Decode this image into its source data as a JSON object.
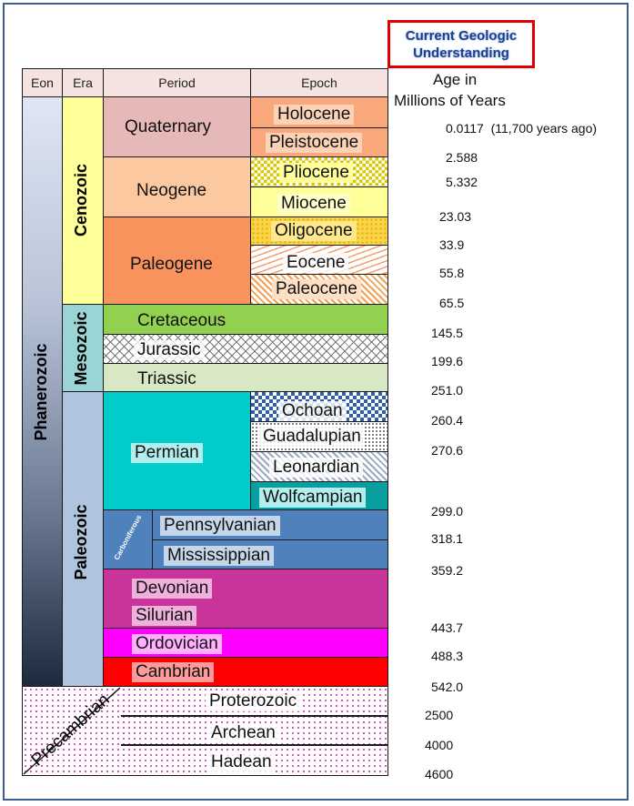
{
  "title": {
    "line1": "Current Geologic",
    "line2": "Understanding"
  },
  "age_header": {
    "line1": "Age in",
    "line2": "Millions of Years"
  },
  "columns": {
    "eon": "Eon",
    "era": "Era",
    "period": "Period",
    "epoch": "Epoch"
  },
  "eons": {
    "phanerozoic": "Phanerozoic",
    "precambrian": "Precambrian"
  },
  "eras": {
    "cenozoic": "Cenozoic",
    "mesozoic": "Mesozoic",
    "paleozoic": "Paleozoic"
  },
  "periods": {
    "quaternary": "Quaternary",
    "neogene": "Neogene",
    "paleogene": "Paleogene",
    "cretaceous": "Cretaceous",
    "jurassic": "Jurassic",
    "triassic": "Triassic",
    "permian": "Permian",
    "carboniferous": "Carboniferous",
    "pennsylvanian": "Pennsylvanian",
    "mississippian": "Mississippian",
    "devonian": "Devonian",
    "silurian": "Silurian",
    "ordovician": "Ordovician",
    "cambrian": "Cambrian",
    "proterozoic": "Proterozoic",
    "archean": "Archean",
    "hadean": "Hadean"
  },
  "epochs": {
    "holocene": "Holocene",
    "pleistocene": "Pleistocene",
    "pliocene": "Pliocene",
    "miocene": "Miocene",
    "oligocene": "Oligocene",
    "eocene": "Eocene",
    "paleocene": "Paleocene",
    "ochoan": "Ochoan",
    "guadalupian": "Guadalupian",
    "leonardian": "Leonardian",
    "wolfcampian": "Wolfcampian"
  },
  "ages": [
    {
      "value": "0.0117",
      "note": "(11,700 years ago)"
    },
    {
      "value": "2.588"
    },
    {
      "value": "5.332"
    },
    {
      "value": "23.03"
    },
    {
      "value": "33.9"
    },
    {
      "value": "55.8"
    },
    {
      "value": "65.5"
    },
    {
      "value": "145.5"
    },
    {
      "value": "199.6"
    },
    {
      "value": "251.0"
    },
    {
      "value": "260.4"
    },
    {
      "value": "270.6"
    },
    {
      "value": "299.0"
    },
    {
      "value": "318.1"
    },
    {
      "value": "359.2"
    },
    {
      "value": "443.7"
    },
    {
      "value": "488.3"
    },
    {
      "value": "542.0"
    },
    {
      "value": "2500"
    },
    {
      "value": "4000"
    },
    {
      "value": "4600"
    }
  ],
  "colors": {
    "quaternary": "#e6b8b8",
    "holocene": "#f8a87a",
    "pleistocene": "#f8a87a",
    "neogene": "#fcc8a0",
    "miocene": "#ffff99",
    "paleogene": "#f9935e",
    "oligocene": "#ffd24a",
    "cretaceous": "#92d050",
    "triassic": "#d9e8c4",
    "permian": "#00cccc",
    "wolfcampian": "#0b9e9e",
    "carboniferous": "#4f81bd",
    "devonian": "#c8349a",
    "ordovician": "#ff00ff",
    "cambrian": "#ff0000",
    "cenozoic": "#ffff99",
    "mesozoic": "#9bd4d4",
    "paleozoic": "#b0c4de"
  }
}
